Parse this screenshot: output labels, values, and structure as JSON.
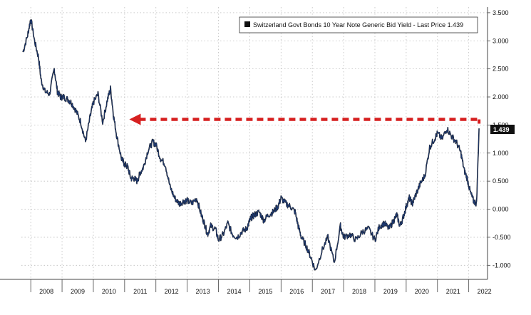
{
  "chart_data": {
    "type": "line",
    "title": "",
    "xlabel": "",
    "ylabel": "",
    "legend_text": "Switzerland Govt Bonds 10 Year Note Generic Bid Yield - Last Price 1.439",
    "last_price_label": "1.439",
    "last_price": 1.439,
    "ylim": [
      -1.25,
      3.6
    ],
    "xlim": [
      2007.7,
      2022.6
    ],
    "grid": true,
    "legend_position": "top-right",
    "line_color": "#1f3d7a",
    "arrow_color": "#d62020",
    "arrow_level": 1.6,
    "arrow_from_year": 2011.15,
    "arrow_to_year": 2022.33,
    "x_tick_labels": [
      "2008",
      "2009",
      "2010",
      "2011",
      "2012",
      "2013",
      "2014",
      "2015",
      "2016",
      "2017",
      "2018",
      "2019",
      "2020",
      "2021",
      "2022"
    ],
    "x_tick_positions": [
      2008,
      2009,
      2010,
      2011,
      2012,
      2013,
      2014,
      2015,
      2016,
      2017,
      2018,
      2019,
      2020,
      2021,
      2022
    ],
    "y_ticks": [
      3.5,
      3.0,
      2.5,
      2.0,
      1.5,
      1.0,
      0.5,
      0.0,
      -0.5,
      -1.0
    ],
    "y_tick_labels": [
      "3.500",
      "3.000",
      "2.500",
      "2.000",
      "1.500",
      "1.000",
      "0.500",
      "0.000",
      "-0.500",
      "-1.000"
    ],
    "x": [
      2007.75,
      2007.9,
      2008.0,
      2008.12,
      2008.25,
      2008.33,
      2008.45,
      2008.6,
      2008.75,
      2008.85,
      2008.95,
      2009.05,
      2009.2,
      2009.3,
      2009.45,
      2009.6,
      2009.75,
      2009.9,
      2010.0,
      2010.15,
      2010.3,
      2010.45,
      2010.55,
      2010.65,
      2010.75,
      2010.9,
      2011.0,
      2011.1,
      2011.2,
      2011.3,
      2011.4,
      2011.5,
      2011.6,
      2011.75,
      2011.9,
      2012.0,
      2012.15,
      2012.3,
      2012.45,
      2012.6,
      2012.75,
      2012.9,
      2013.0,
      2013.15,
      2013.3,
      2013.45,
      2013.55,
      2013.65,
      2013.75,
      2013.9,
      2014.0,
      2014.15,
      2014.3,
      2014.45,
      2014.6,
      2014.75,
      2014.9,
      2015.0,
      2015.05,
      2015.15,
      2015.3,
      2015.45,
      2015.6,
      2015.75,
      2015.9,
      2016.0,
      2016.15,
      2016.3,
      2016.45,
      2016.55,
      2016.65,
      2016.8,
      2016.95,
      2017.1,
      2017.3,
      2017.5,
      2017.7,
      2017.9,
      2018.0,
      2018.2,
      2018.4,
      2018.6,
      2018.8,
      2019.0,
      2019.15,
      2019.3,
      2019.45,
      2019.6,
      2019.7,
      2019.8,
      2019.9,
      2020.0,
      2020.1,
      2020.2,
      2020.3,
      2020.45,
      2020.6,
      2020.75,
      2020.9,
      2021.0,
      2021.15,
      2021.3,
      2021.45,
      2021.6,
      2021.75,
      2021.85,
      2021.95,
      2022.05,
      2022.15,
      2022.25,
      2022.33
    ],
    "y": [
      2.8,
      3.1,
      3.4,
      3.0,
      2.7,
      2.3,
      2.1,
      2.05,
      2.5,
      2.1,
      2.0,
      2.0,
      1.95,
      1.9,
      1.75,
      1.55,
      1.2,
      1.65,
      1.9,
      2.05,
      1.55,
      1.95,
      2.15,
      1.65,
      1.3,
      0.9,
      0.8,
      0.75,
      0.55,
      0.55,
      0.5,
      0.65,
      0.75,
      1.05,
      1.2,
      1.15,
      0.9,
      0.8,
      0.4,
      0.2,
      0.1,
      0.15,
      0.15,
      0.1,
      0.2,
      -0.1,
      -0.25,
      -0.45,
      -0.3,
      -0.35,
      -0.55,
      -0.45,
      -0.25,
      -0.45,
      -0.5,
      -0.4,
      -0.35,
      -0.2,
      -0.15,
      -0.1,
      -0.05,
      -0.2,
      -0.1,
      -0.05,
      0.05,
      0.2,
      0.1,
      0.05,
      -0.05,
      -0.3,
      -0.5,
      -0.65,
      -0.85,
      -1.1,
      -0.75,
      -0.5,
      -0.95,
      -0.3,
      -0.5,
      -0.45,
      -0.55,
      -0.4,
      -0.35,
      -0.55,
      -0.3,
      -0.25,
      -0.35,
      -0.2,
      -0.1,
      -0.3,
      -0.15,
      0.05,
      0.2,
      0.1,
      0.25,
      0.45,
      0.6,
      1.1,
      1.25,
      1.35,
      1.25,
      1.439,
      1.3,
      1.2,
      1.0,
      0.7,
      0.55,
      0.3,
      0.15,
      0.1,
      1.439
    ]
  }
}
